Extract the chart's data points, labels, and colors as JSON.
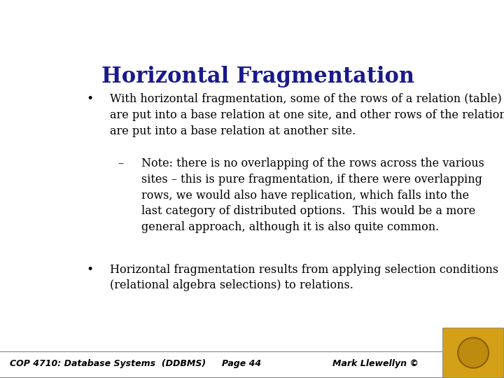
{
  "title": "Horizontal Fragmentation",
  "title_color": "#1a1a8c",
  "title_fontsize": 22,
  "bg_color": "#ffffff",
  "footer_bg": "#c0c0c0",
  "footer_text_left": "COP 4710: Database Systems  (DDBMS)",
  "footer_text_center": "Page 44",
  "footer_text_right": "Mark Llewellyn ©",
  "footer_fontsize": 9,
  "body_font": "serif",
  "body_color": "#000000",
  "bullet1": "With horizontal fragmentation, some of the rows of a relation (table) are put into a base relation at one site, and other rows of the relation are put into a base relation at another site.",
  "sub_bullet": "Note: there is no overlapping of the rows across the various sites – this is pure fragmentation, if there were overlapping rows, we would also have replication, which falls into the last category of distributed options.  This would be a more general approach, although it is also quite common.",
  "bullet2": "Horizontal fragmentation results from applying selection conditions (relational algebra selections) to relations."
}
